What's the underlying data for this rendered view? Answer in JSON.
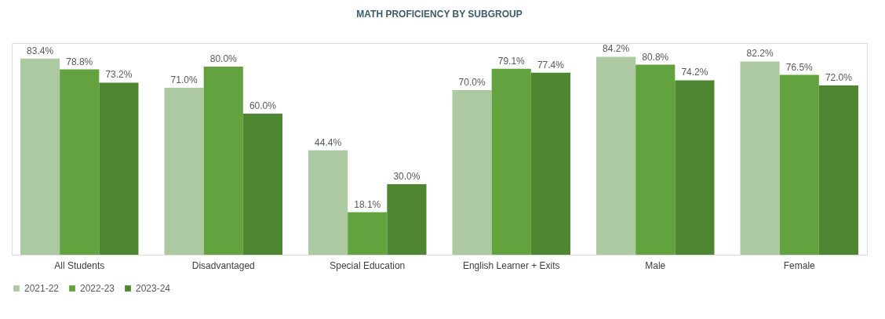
{
  "chart_data": {
    "type": "bar",
    "title": "MATH PROFICIENCY BY SUBGROUP",
    "categories": [
      "All Students",
      "Disadvantaged",
      "Special Education",
      "English Learner + Exits",
      "Male",
      "Female"
    ],
    "series": [
      {
        "name": "2021-22",
        "color": "#adc9a2",
        "values": [
          83.4,
          71.0,
          44.4,
          70.0,
          84.2,
          82.2
        ],
        "value_labels": [
          "83.4%",
          "71.0%",
          "44.4%",
          "70.0%",
          "84.2%",
          "82.2%"
        ]
      },
      {
        "name": "2022-23",
        "color": "#63a33f",
        "values": [
          78.8,
          80.0,
          18.1,
          79.1,
          80.8,
          76.5
        ],
        "value_labels": [
          "78.8%",
          "80.0%",
          "18.1%",
          "79.1%",
          "80.8%",
          "76.5%"
        ]
      },
      {
        "name": "2023-24",
        "color": "#4e8632",
        "values": [
          73.2,
          60.0,
          30.0,
          77.4,
          74.2,
          72.0
        ],
        "value_labels": [
          "73.2%",
          "60.0%",
          "30.0%",
          "77.4%",
          "74.2%",
          "72.0%"
        ]
      }
    ],
    "grid": false,
    "legend": "bottom"
  }
}
